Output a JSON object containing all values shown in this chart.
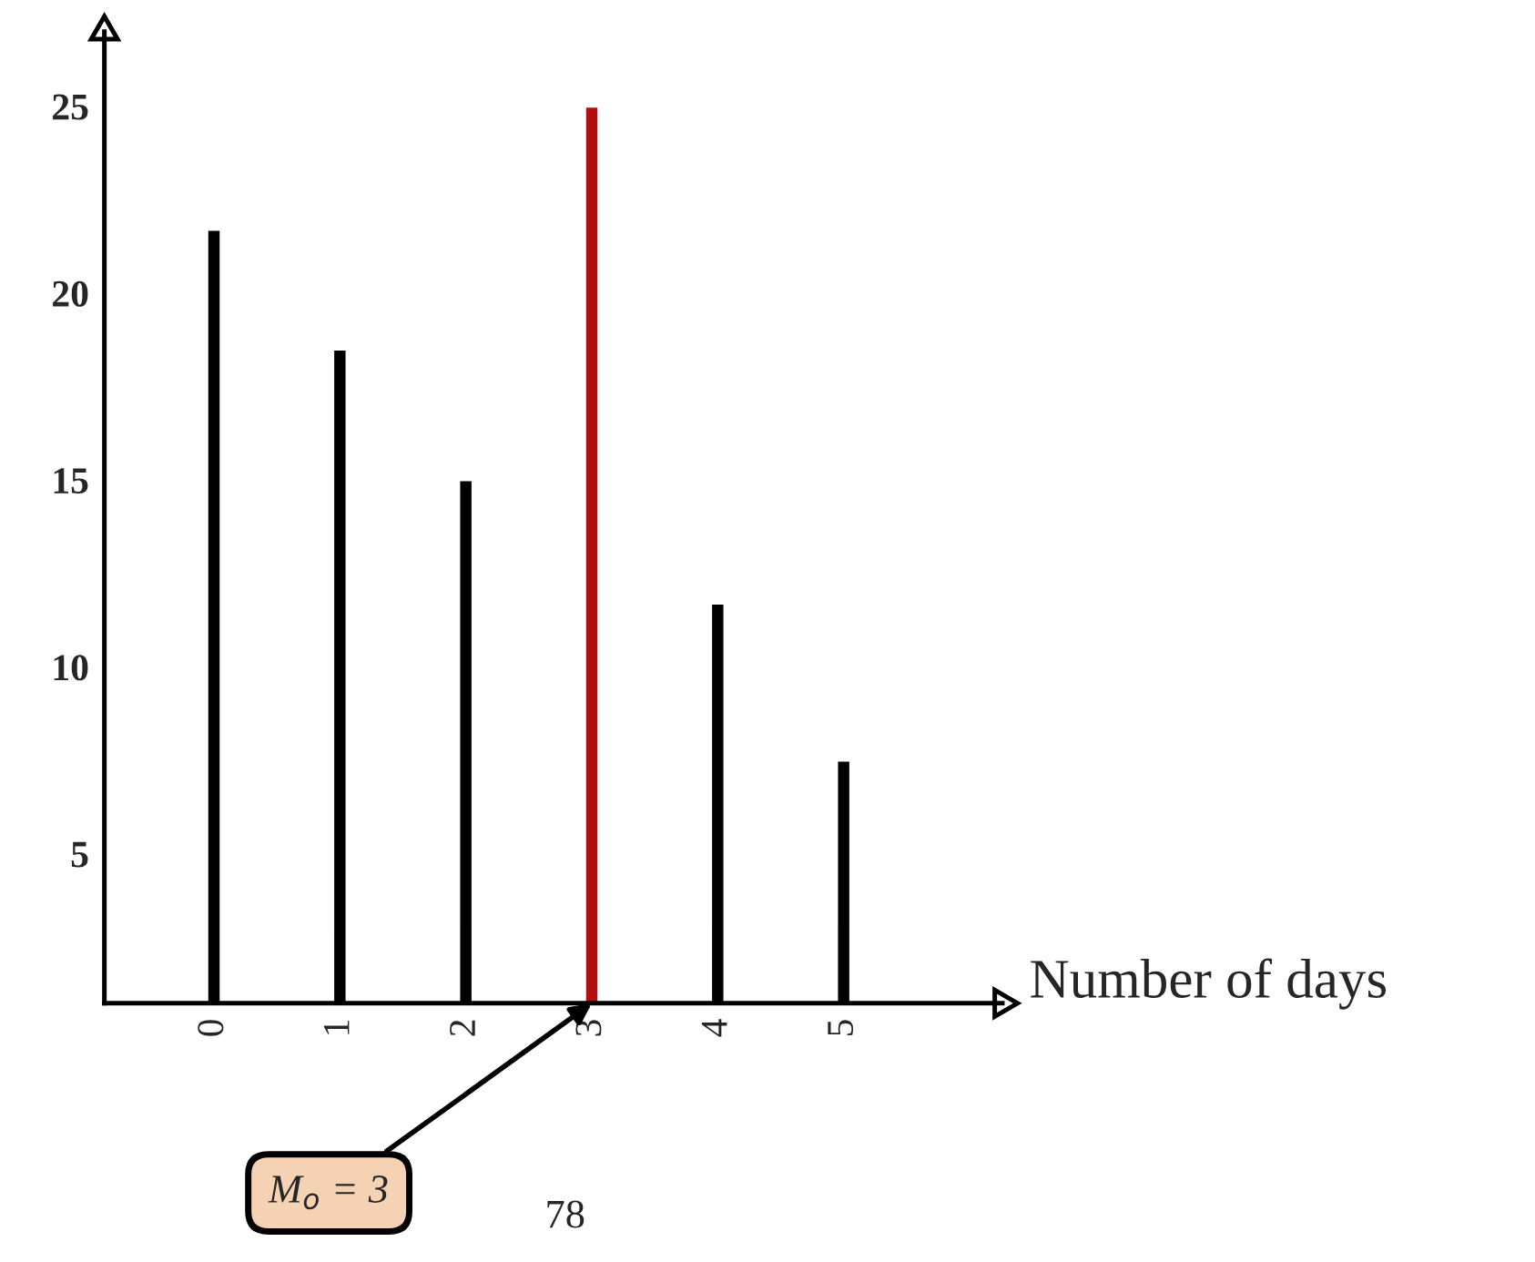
{
  "chart_data": {
    "type": "bar",
    "xlabel": "Number of days",
    "categories": [
      "0",
      "1",
      "2",
      "3",
      "4",
      "5"
    ],
    "values": [
      21.7,
      18.5,
      15,
      25,
      11.7,
      7.5
    ],
    "colors": [
      "#000000",
      "#000000",
      "#000000",
      "#b01010",
      "#000000",
      "#000000"
    ],
    "ylim": [
      1,
      27
    ],
    "yticks": [
      5,
      10,
      15,
      20,
      25
    ],
    "grid": false,
    "annotations": [
      {
        "text": "M$_{o}$ = 3",
        "x": "3",
        "y": 1
      },
      "78"
    ]
  }
}
